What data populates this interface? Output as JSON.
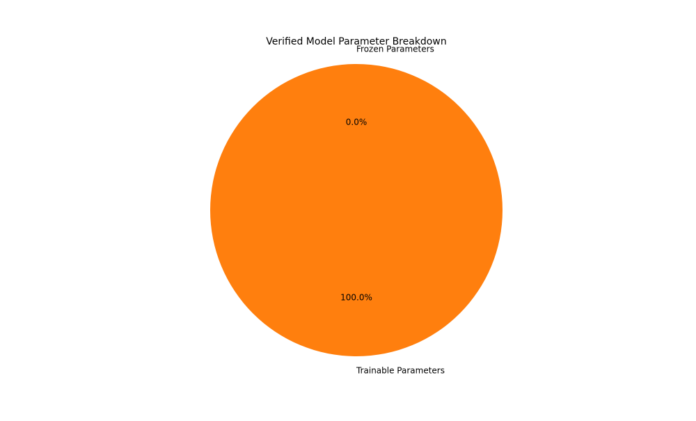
{
  "chart_data": {
    "type": "pie",
    "title": "Verified Model Parameter Breakdown",
    "slices": [
      {
        "label": "Frozen Parameters",
        "value": 0.0,
        "pct_label": "0.0%",
        "color": "#1f77b4"
      },
      {
        "label": "Trainable Parameters",
        "value": 100.0,
        "pct_label": "100.0%",
        "color": "#ff7f0e"
      }
    ]
  }
}
